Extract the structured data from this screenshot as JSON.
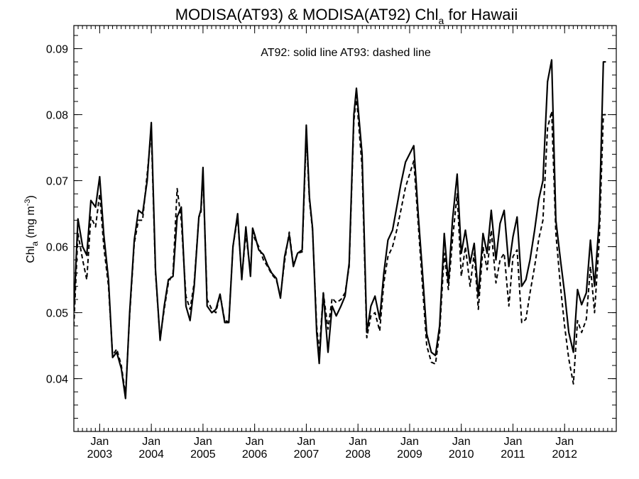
{
  "chart_data": {
    "type": "line",
    "title": {
      "prefix": "MODISA(AT93) & MODISA(AT92)  Chl",
      "subscript": "a",
      "suffix": " for Hawaii"
    },
    "ylabel": {
      "prefix": "Chl",
      "subscript": "a",
      "units_open": " (mg m",
      "superscript": "-3",
      "units_close": ")"
    },
    "annotation": "AT92: solid line   AT93: dashed line",
    "xlim": [
      2002.5,
      2013.0
    ],
    "ylim": [
      0.032,
      0.0935
    ],
    "grid": false,
    "y_ticks": [
      {
        "value": 0.04,
        "label": "0.04"
      },
      {
        "value": 0.05,
        "label": "0.05"
      },
      {
        "value": 0.06,
        "label": "0.06"
      },
      {
        "value": 0.07,
        "label": "0.07"
      },
      {
        "value": 0.08,
        "label": "0.08"
      },
      {
        "value": 0.09,
        "label": "0.09"
      }
    ],
    "x_ticks": [
      {
        "value": 2003,
        "month": "Jan",
        "year": "2003"
      },
      {
        "value": 2004,
        "month": "Jan",
        "year": "2004"
      },
      {
        "value": 2005,
        "month": "Jan",
        "year": "2005"
      },
      {
        "value": 2006,
        "month": "Jan",
        "year": "2006"
      },
      {
        "value": 2007,
        "month": "Jan",
        "year": "2007"
      },
      {
        "value": 2008,
        "month": "Jan",
        "year": "2008"
      },
      {
        "value": 2009,
        "month": "Jan",
        "year": "2009"
      },
      {
        "value": 2010,
        "month": "Jan",
        "year": "2010"
      },
      {
        "value": 2011,
        "month": "Jan",
        "year": "2011"
      },
      {
        "value": 2012,
        "month": "Jan",
        "year": "2012"
      }
    ],
    "series": [
      {
        "style": "solid",
        "color": "#000000",
        "points": [
          [
            2002.5,
            0.0505
          ],
          [
            2002.58,
            0.0642
          ],
          [
            2002.67,
            0.06
          ],
          [
            2002.75,
            0.0587
          ],
          [
            2002.83,
            0.067
          ],
          [
            2002.92,
            0.066
          ],
          [
            2003.0,
            0.0706
          ],
          [
            2003.08,
            0.0618
          ],
          [
            2003.17,
            0.055
          ],
          [
            2003.25,
            0.0432
          ],
          [
            2003.33,
            0.044
          ],
          [
            2003.42,
            0.0415
          ],
          [
            2003.5,
            0.037
          ],
          [
            2003.58,
            0.05
          ],
          [
            2003.67,
            0.061
          ],
          [
            2003.75,
            0.0655
          ],
          [
            2003.83,
            0.065
          ],
          [
            2003.92,
            0.07
          ],
          [
            2004.0,
            0.0788
          ],
          [
            2004.08,
            0.0565
          ],
          [
            2004.17,
            0.0458
          ],
          [
            2004.25,
            0.051
          ],
          [
            2004.33,
            0.055
          ],
          [
            2004.42,
            0.0555
          ],
          [
            2004.5,
            0.0645
          ],
          [
            2004.58,
            0.066
          ],
          [
            2004.67,
            0.051
          ],
          [
            2004.75,
            0.0488
          ],
          [
            2004.83,
            0.054
          ],
          [
            2004.92,
            0.0645
          ],
          [
            2004.96,
            0.0656
          ],
          [
            2005.0,
            0.072
          ],
          [
            2005.08,
            0.051
          ],
          [
            2005.17,
            0.05
          ],
          [
            2005.25,
            0.0505
          ],
          [
            2005.33,
            0.0528
          ],
          [
            2005.42,
            0.0485
          ],
          [
            2005.5,
            0.0485
          ],
          [
            2005.58,
            0.06
          ],
          [
            2005.67,
            0.065
          ],
          [
            2005.75,
            0.055
          ],
          [
            2005.83,
            0.063
          ],
          [
            2005.92,
            0.0555
          ],
          [
            2005.96,
            0.0628
          ],
          [
            2006.0,
            0.0618
          ],
          [
            2006.08,
            0.0595
          ],
          [
            2006.17,
            0.0588
          ],
          [
            2006.25,
            0.0572
          ],
          [
            2006.33,
            0.056
          ],
          [
            2006.42,
            0.0552
          ],
          [
            2006.5,
            0.0522
          ],
          [
            2006.58,
            0.0585
          ],
          [
            2006.67,
            0.0618
          ],
          [
            2006.75,
            0.057
          ],
          [
            2006.83,
            0.059
          ],
          [
            2006.92,
            0.0595
          ],
          [
            2007.0,
            0.0784
          ],
          [
            2007.06,
            0.0675
          ],
          [
            2007.12,
            0.0628
          ],
          [
            2007.2,
            0.047
          ],
          [
            2007.25,
            0.0423
          ],
          [
            2007.33,
            0.053
          ],
          [
            2007.42,
            0.044
          ],
          [
            2007.5,
            0.051
          ],
          [
            2007.58,
            0.0495
          ],
          [
            2007.67,
            0.051
          ],
          [
            2007.75,
            0.0525
          ],
          [
            2007.83,
            0.0575
          ],
          [
            2007.92,
            0.08
          ],
          [
            2007.97,
            0.084
          ],
          [
            2008.08,
            0.074
          ],
          [
            2008.17,
            0.047
          ],
          [
            2008.25,
            0.051
          ],
          [
            2008.33,
            0.0525
          ],
          [
            2008.42,
            0.049
          ],
          [
            2008.5,
            0.056
          ],
          [
            2008.58,
            0.061
          ],
          [
            2008.67,
            0.0625
          ],
          [
            2008.75,
            0.066
          ],
          [
            2008.83,
            0.0695
          ],
          [
            2008.92,
            0.0728
          ],
          [
            2009.08,
            0.0753
          ],
          [
            2009.17,
            0.0645
          ],
          [
            2009.25,
            0.056
          ],
          [
            2009.33,
            0.0468
          ],
          [
            2009.42,
            0.044
          ],
          [
            2009.5,
            0.0435
          ],
          [
            2009.58,
            0.048
          ],
          [
            2009.67,
            0.062
          ],
          [
            2009.75,
            0.0545
          ],
          [
            2009.83,
            0.064
          ],
          [
            2009.92,
            0.071
          ],
          [
            2010.0,
            0.059
          ],
          [
            2010.08,
            0.0625
          ],
          [
            2010.17,
            0.0575
          ],
          [
            2010.25,
            0.0605
          ],
          [
            2010.33,
            0.0525
          ],
          [
            2010.42,
            0.062
          ],
          [
            2010.5,
            0.059
          ],
          [
            2010.58,
            0.0655
          ],
          [
            2010.67,
            0.058
          ],
          [
            2010.75,
            0.0635
          ],
          [
            2010.83,
            0.0655
          ],
          [
            2010.92,
            0.057
          ],
          [
            2011.0,
            0.0615
          ],
          [
            2011.08,
            0.0645
          ],
          [
            2011.17,
            0.054
          ],
          [
            2011.25,
            0.055
          ],
          [
            2011.33,
            0.058
          ],
          [
            2011.42,
            0.0625
          ],
          [
            2011.5,
            0.0672
          ],
          [
            2011.58,
            0.07
          ],
          [
            2011.67,
            0.085
          ],
          [
            2011.75,
            0.0883
          ],
          [
            2011.83,
            0.064
          ],
          [
            2011.92,
            0.058
          ],
          [
            2012.0,
            0.053
          ],
          [
            2012.08,
            0.047
          ],
          [
            2012.17,
            0.044
          ],
          [
            2012.25,
            0.0535
          ],
          [
            2012.33,
            0.0512
          ],
          [
            2012.42,
            0.053
          ],
          [
            2012.5,
            0.061
          ],
          [
            2012.58,
            0.054
          ],
          [
            2012.67,
            0.064
          ],
          [
            2012.75,
            0.088
          ],
          [
            2012.8,
            0.088
          ]
        ]
      },
      {
        "style": "dashed",
        "color": "#000000",
        "points": [
          [
            2002.5,
            0.048
          ],
          [
            2002.58,
            0.062
          ],
          [
            2002.67,
            0.058
          ],
          [
            2002.75,
            0.055
          ],
          [
            2002.83,
            0.0645
          ],
          [
            2002.92,
            0.063
          ],
          [
            2003.0,
            0.068
          ],
          [
            2003.08,
            0.06
          ],
          [
            2003.17,
            0.054
          ],
          [
            2003.25,
            0.0435
          ],
          [
            2003.33,
            0.0445
          ],
          [
            2003.42,
            0.042
          ],
          [
            2003.5,
            0.0375
          ],
          [
            2003.58,
            0.0495
          ],
          [
            2003.67,
            0.0605
          ],
          [
            2003.75,
            0.064
          ],
          [
            2003.83,
            0.064
          ],
          [
            2003.92,
            0.071
          ],
          [
            2004.0,
            0.0775
          ],
          [
            2004.08,
            0.056
          ],
          [
            2004.17,
            0.046
          ],
          [
            2004.25,
            0.0505
          ],
          [
            2004.33,
            0.0545
          ],
          [
            2004.42,
            0.056
          ],
          [
            2004.5,
            0.0688
          ],
          [
            2004.58,
            0.064
          ],
          [
            2004.67,
            0.0525
          ],
          [
            2004.75,
            0.0505
          ],
          [
            2004.83,
            0.0545
          ],
          [
            2004.92,
            0.0645
          ],
          [
            2004.96,
            0.065
          ],
          [
            2005.0,
            0.071
          ],
          [
            2005.08,
            0.052
          ],
          [
            2005.17,
            0.0505
          ],
          [
            2005.25,
            0.05
          ],
          [
            2005.33,
            0.0528
          ],
          [
            2005.42,
            0.0488
          ],
          [
            2005.5,
            0.0486
          ],
          [
            2005.58,
            0.06
          ],
          [
            2005.67,
            0.0645
          ],
          [
            2005.75,
            0.0552
          ],
          [
            2005.83,
            0.062
          ],
          [
            2005.92,
            0.056
          ],
          [
            2005.96,
            0.0625
          ],
          [
            2006.0,
            0.0612
          ],
          [
            2006.08,
            0.06
          ],
          [
            2006.17,
            0.058
          ],
          [
            2006.25,
            0.057
          ],
          [
            2006.33,
            0.0558
          ],
          [
            2006.42,
            0.055
          ],
          [
            2006.5,
            0.0525
          ],
          [
            2006.58,
            0.0578
          ],
          [
            2006.67,
            0.0622
          ],
          [
            2006.75,
            0.0572
          ],
          [
            2006.83,
            0.059
          ],
          [
            2006.92,
            0.0592
          ],
          [
            2007.0,
            0.077
          ],
          [
            2007.06,
            0.067
          ],
          [
            2007.12,
            0.0625
          ],
          [
            2007.2,
            0.048
          ],
          [
            2007.25,
            0.044
          ],
          [
            2007.33,
            0.053
          ],
          [
            2007.42,
            0.0475
          ],
          [
            2007.5,
            0.0522
          ],
          [
            2007.58,
            0.0515
          ],
          [
            2007.67,
            0.052
          ],
          [
            2007.75,
            0.053
          ],
          [
            2007.83,
            0.057
          ],
          [
            2007.92,
            0.079
          ],
          [
            2007.97,
            0.0828
          ],
          [
            2008.08,
            0.072
          ],
          [
            2008.17,
            0.0462
          ],
          [
            2008.25,
            0.0495
          ],
          [
            2008.33,
            0.05
          ],
          [
            2008.42,
            0.0472
          ],
          [
            2008.5,
            0.0545
          ],
          [
            2008.58,
            0.0585
          ],
          [
            2008.67,
            0.06
          ],
          [
            2008.75,
            0.0625
          ],
          [
            2008.83,
            0.0655
          ],
          [
            2008.92,
            0.069
          ],
          [
            2009.08,
            0.073
          ],
          [
            2009.17,
            0.063
          ],
          [
            2009.25,
            0.054
          ],
          [
            2009.33,
            0.045
          ],
          [
            2009.42,
            0.0425
          ],
          [
            2009.5,
            0.0422
          ],
          [
            2009.58,
            0.047
          ],
          [
            2009.67,
            0.059
          ],
          [
            2009.75,
            0.0535
          ],
          [
            2009.83,
            0.061
          ],
          [
            2009.92,
            0.068
          ],
          [
            2010.0,
            0.0555
          ],
          [
            2010.08,
            0.06
          ],
          [
            2010.17,
            0.054
          ],
          [
            2010.25,
            0.059
          ],
          [
            2010.33,
            0.0505
          ],
          [
            2010.42,
            0.06
          ],
          [
            2010.5,
            0.0565
          ],
          [
            2010.58,
            0.0625
          ],
          [
            2010.67,
            0.0545
          ],
          [
            2010.75,
            0.058
          ],
          [
            2010.83,
            0.059
          ],
          [
            2010.92,
            0.051
          ],
          [
            2011.0,
            0.0585
          ],
          [
            2011.08,
            0.0595
          ],
          [
            2011.17,
            0.0485
          ],
          [
            2011.25,
            0.049
          ],
          [
            2011.33,
            0.053
          ],
          [
            2011.42,
            0.057
          ],
          [
            2011.5,
            0.0612
          ],
          [
            2011.58,
            0.064
          ],
          [
            2011.67,
            0.078
          ],
          [
            2011.75,
            0.0805
          ],
          [
            2011.83,
            0.062
          ],
          [
            2011.92,
            0.054
          ],
          [
            2012.0,
            0.048
          ],
          [
            2012.08,
            0.043
          ],
          [
            2012.17,
            0.0392
          ],
          [
            2012.25,
            0.0488
          ],
          [
            2012.33,
            0.047
          ],
          [
            2012.42,
            0.049
          ],
          [
            2012.5,
            0.057
          ],
          [
            2012.58,
            0.05
          ],
          [
            2012.67,
            0.061
          ],
          [
            2012.75,
            0.08
          ],
          [
            2012.8,
            0.08
          ]
        ]
      }
    ]
  }
}
